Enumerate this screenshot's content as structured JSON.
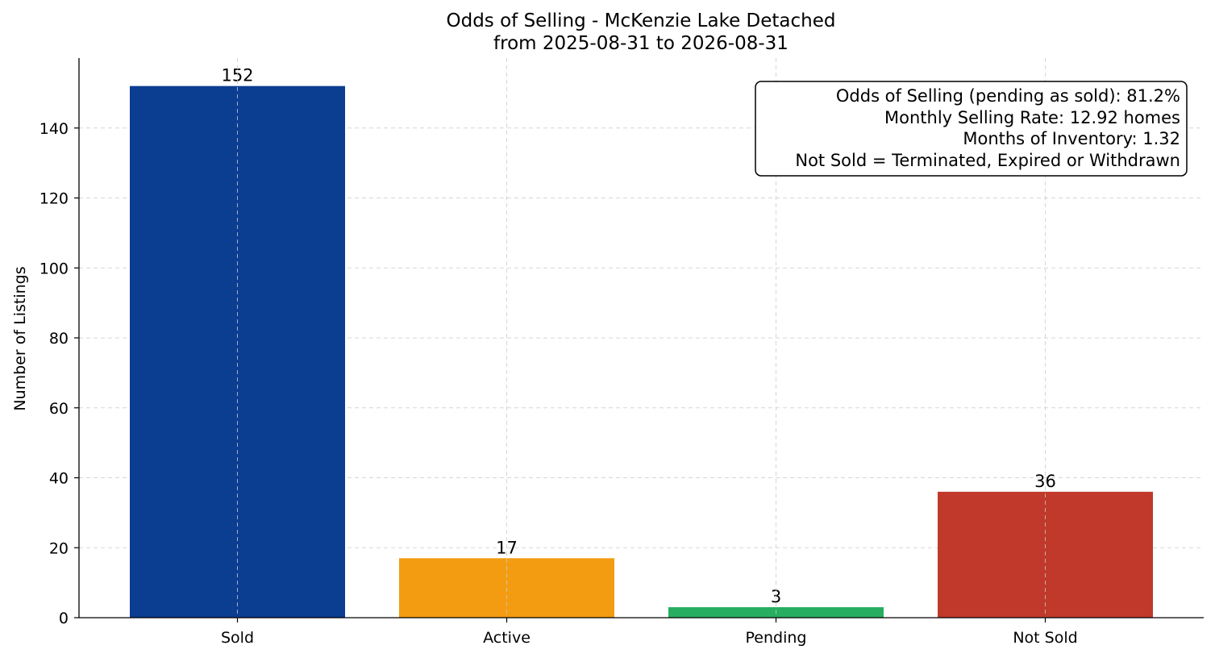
{
  "chart_data": {
    "type": "bar",
    "title": "Odds of Selling - McKenzie Lake Detached",
    "subtitle": "from 2025-08-31 to 2026-08-31",
    "xlabel": "",
    "ylabel": "Number of Listings",
    "categories": [
      "Sold",
      "Active",
      "Pending",
      "Not Sold"
    ],
    "values": [
      152,
      17,
      3,
      36
    ],
    "data_labels": [
      "152",
      "17",
      "3",
      "36"
    ],
    "colors": [
      "#0b3d91",
      "#f39c12",
      "#27ae60",
      "#c0392b"
    ],
    "ylim": [
      0,
      160
    ],
    "yticks": [
      0,
      20,
      40,
      60,
      80,
      100,
      120,
      140
    ],
    "grid": true,
    "legend": "none",
    "annotation_box": {
      "placement": "top-right",
      "lines": [
        "Odds of Selling (pending as sold): 81.2%",
        "Monthly Selling Rate: 12.92 homes",
        "Months of Inventory: 1.32",
        "Not Sold = Terminated, Expired or Withdrawn"
      ]
    }
  }
}
